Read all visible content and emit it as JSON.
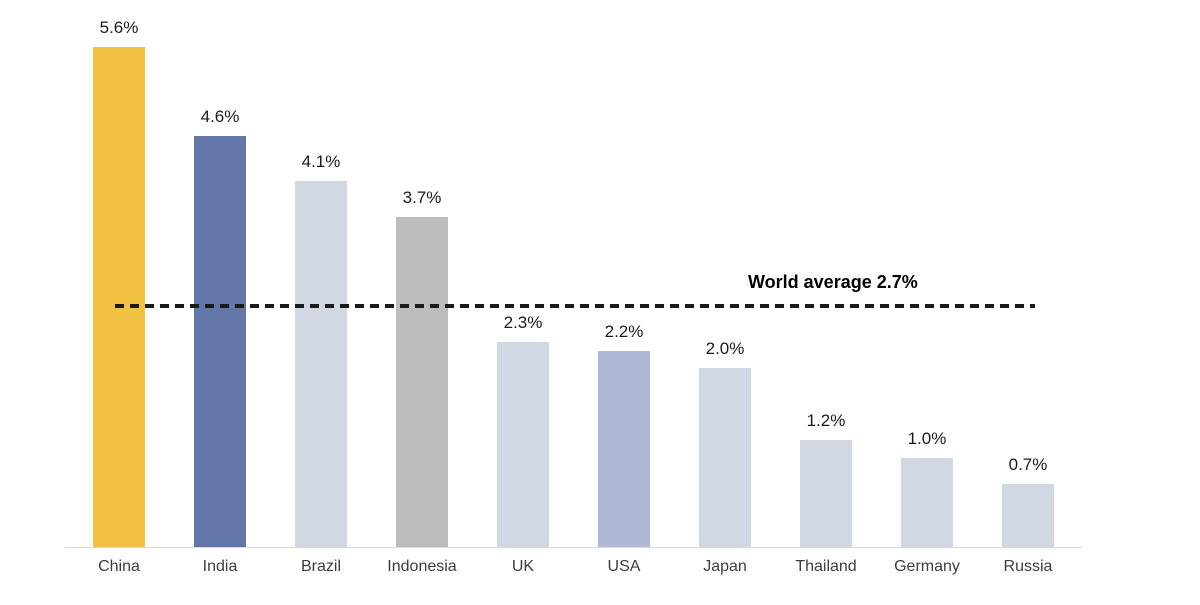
{
  "chart_data": {
    "type": "bar",
    "title": "",
    "xlabel": "",
    "ylabel": "",
    "categories": [
      "China",
      "India",
      "Brazil",
      "Indonesia",
      "UK",
      "USA",
      "Japan",
      "Thailand",
      "Germany",
      "Russia"
    ],
    "values": [
      5.6,
      4.6,
      4.1,
      3.7,
      2.3,
      2.2,
      2.0,
      1.2,
      1.0,
      0.7
    ],
    "value_labels": [
      "5.6%",
      "4.6%",
      "4.1%",
      "3.7%",
      "2.3%",
      "2.2%",
      "2.0%",
      "1.2%",
      "1.0%",
      "0.7%"
    ],
    "bar_colors": [
      "#F2C342",
      "#6376A9",
      "#D2D7E4",
      "#BDBDBD",
      "#D2D7E4",
      "#AFB8D4",
      "#D2D7E4",
      "#D2D7E4",
      "#D2D7E4",
      "#D2D7E4"
    ],
    "annotation": {
      "label": "World average 2.7%",
      "value": 2.7,
      "line_style": "dashed",
      "line_color": "#1a1a1a"
    },
    "ylim": [
      0,
      6
    ],
    "grid": false,
    "legend": null,
    "axis_line_color": "#d9d9d9",
    "background": "#ffffff"
  }
}
